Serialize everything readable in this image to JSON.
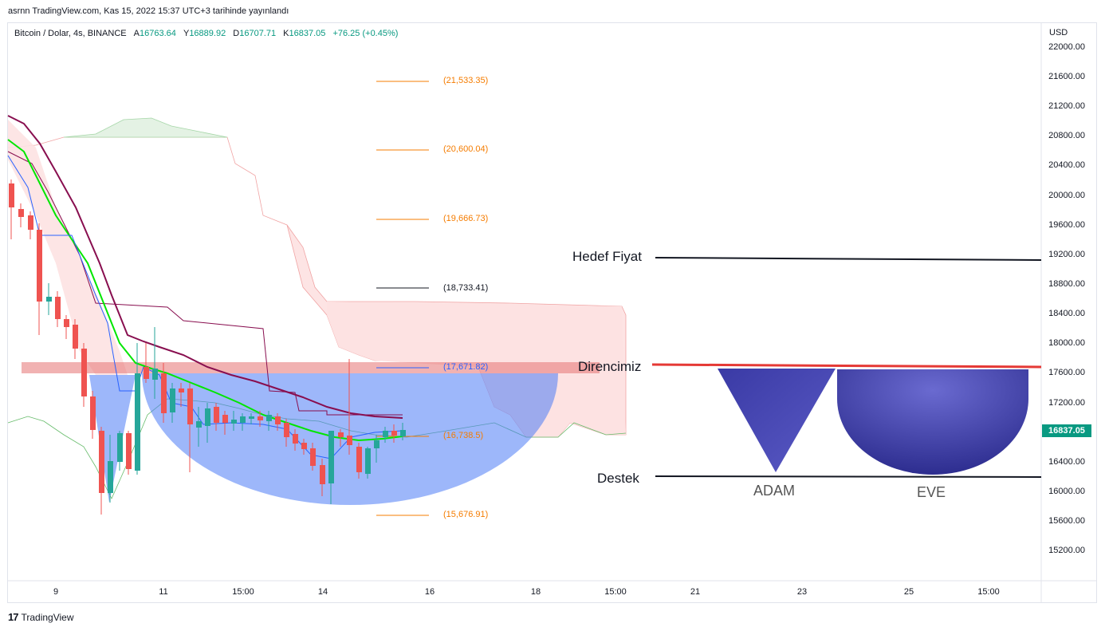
{
  "header": {
    "published": "asrnn TradingView.com, Kas 15, 2022 15:37 UTC+3 tarihinde yayınlandı"
  },
  "legend": {
    "symbol": "Bitcoin / Dolar, 4s, BINANCE",
    "open_key": "A",
    "open": "16763.64",
    "high_key": "Y",
    "high": "16889.92",
    "low_key": "D",
    "low": "16707.71",
    "close_key": "K",
    "close": "16837.05",
    "change": "+76.25 (+0.45%)"
  },
  "price_axis": {
    "currency": "USD",
    "labels": [
      "22000.00",
      "21600.00",
      "21200.00",
      "20800.00",
      "20400.00",
      "20000.00",
      "19600.00",
      "19200.00",
      "18800.00",
      "18400.00",
      "18000.00",
      "17600.00",
      "17200.00",
      "16400.00",
      "16000.00",
      "15600.00",
      "15200.00"
    ],
    "current_price": "16837.05"
  },
  "time_axis": {
    "labels": [
      "9",
      "11",
      "15:00",
      "14",
      "16",
      "18",
      "15:00",
      "21",
      "23",
      "25",
      "15:00"
    ]
  },
  "fib_levels": [
    "(21,533.35)",
    "(20,600.04)",
    "(19,666.73)",
    "(18,733.41)",
    "(17,671.82)",
    "(16,738.5)",
    "(15,676.91)"
  ],
  "annotations": {
    "target": "Hedef Fiyat",
    "resistance": "Direncimiz",
    "support": "Destek",
    "cup_left": "ADAM",
    "cup_right": "EVE"
  },
  "colors": {
    "bull": "#26a69a",
    "bear": "#ef5350",
    "fib": "#f57c00",
    "ema_green": "#00e600",
    "ma_dark": "#880e4f",
    "resistance_line": "#e53935",
    "cup_fill": "#3f3fa8"
  },
  "footer": {
    "brand": "TradingView"
  }
}
